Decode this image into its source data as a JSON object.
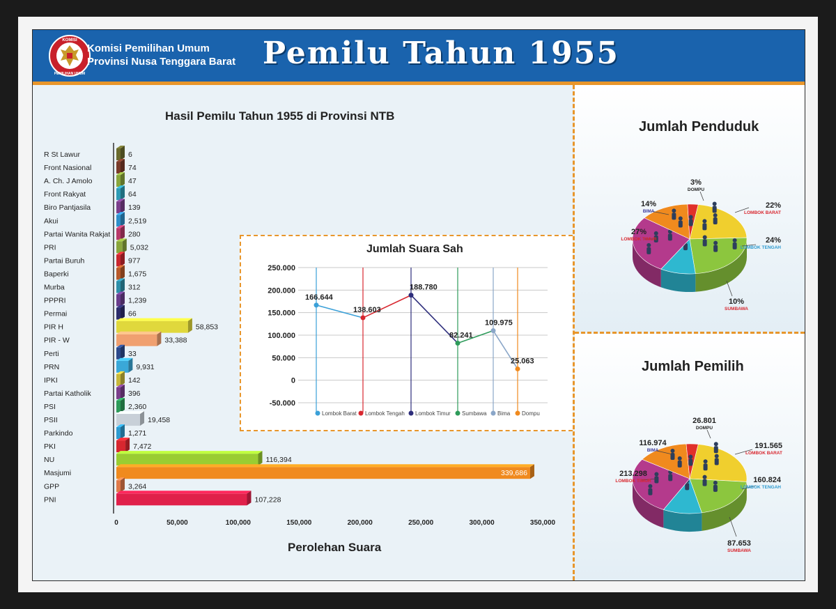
{
  "header": {
    "org_line1": "Komisi Pemilihan Umum",
    "org_line2": "Provinsi Nusa Tenggara Barat",
    "title": "Pemilu Tahun 1955",
    "logo_text_top": "KOMISI",
    "logo_text_bottom": "PEMILIHAN UMUM",
    "colors": {
      "blue": "#1a63ad",
      "orange": "#e8962b"
    }
  },
  "chart_data": [
    {
      "type": "bar",
      "orientation": "horizontal",
      "title": "Hasil Pemilu Tahun 1955 di Provinsi  NTB",
      "xlabel": "Perolehan Suara",
      "xlim": [
        0,
        350000
      ],
      "xticks": [
        "0",
        "50,000",
        "100,000",
        "150,000",
        "200,000",
        "250,000",
        "300,000",
        "350,000"
      ],
      "categories": [
        "R St Lawur",
        "Front Nasional",
        "A. Ch. J Amolo",
        "Front Rakyat",
        "Biro Pantjasila",
        "Akui",
        "Partai Wanita Rakjat",
        "PRI",
        "Partai Buruh",
        "Baperki",
        "Murba",
        "PPPRI",
        "Permai",
        "PIR H",
        "PIR - W",
        "Perti",
        "PRN",
        "IPKI",
        "Partai Katholik",
        "PSI",
        "PSII",
        "Parkindo",
        "PKI",
        "NU",
        "Masjumi",
        "GPP",
        "PNI"
      ],
      "values": [
        6,
        74,
        47,
        64,
        139,
        2519,
        280,
        5032,
        977,
        1675,
        312,
        1239,
        66,
        58853,
        33388,
        33,
        9931,
        142,
        396,
        2360,
        19458,
        1271,
        7472,
        116394,
        339686,
        3264,
        107228
      ],
      "value_labels": [
        "6",
        "74",
        "47",
        "64",
        "139",
        "2,519",
        "280",
        "5,032",
        "977",
        "1,675",
        "312",
        "1,239",
        "66",
        "58,853",
        "33,388",
        "33",
        "9,931",
        "142",
        "396",
        "2,360",
        "19,458",
        "1,271",
        "7,472",
        "116,394",
        "339,686",
        "3,264",
        "107,228"
      ],
      "colors": [
        "#6b6b2e",
        "#7a3b2a",
        "#8aa63c",
        "#2e9bb5",
        "#7b3f8c",
        "#2e8fc9",
        "#b83a6a",
        "#8aa63c",
        "#c9272f",
        "#b85a2a",
        "#2e8fa9",
        "#6a3d8c",
        "#2d2d6b",
        "#e0d83c",
        "#f0a070",
        "#2d4a8c",
        "#3aa8d8",
        "#c8b83a",
        "#7b3f8c",
        "#2e9b5a",
        "#c8d0d8",
        "#2e9bd0",
        "#d8272f",
        "#9acd32",
        "#f08a1e",
        "#e07a4a",
        "#e0204a"
      ]
    },
    {
      "type": "line",
      "title": "Jumlah Suara Sah",
      "ylim": [
        -50000,
        250000
      ],
      "yticks": [
        "250.000",
        "200.000",
        "150.000",
        "100.000",
        "50.000",
        "0",
        "-50.000"
      ],
      "categories": [
        "Lombok Barat",
        "Lombok Tengah",
        "Lombok Timur",
        "Sumbawa",
        "Bima",
        "Dompu"
      ],
      "values": [
        166644,
        138603,
        188780,
        82241,
        109975,
        25063
      ],
      "value_labels": [
        "166.644",
        "138.603",
        "188.780",
        "82.241",
        "109.975",
        "25.063"
      ],
      "colors": [
        "#3aa0d8",
        "#d8272f",
        "#2d2d7b",
        "#2e9b5a",
        "#8aa6c8",
        "#f08a1e"
      ]
    },
    {
      "type": "pie",
      "title": "Jumlah Penduduk",
      "categories": [
        "Lombok Barat",
        "Lombok Tengah",
        "Sumbawa",
        "Lombok Timur",
        "Bima",
        "Dompu"
      ],
      "labels": [
        "LOMBOK BARAT",
        "LOMBOK TENGAH",
        "SUMBAWA",
        "LOMBOK TIMUR",
        "BIMA",
        "DOMPU"
      ],
      "values": [
        22,
        24,
        10,
        27,
        14,
        3
      ],
      "value_labels": [
        "22%",
        "24%",
        "10%",
        "27%",
        "14%",
        "3%"
      ],
      "colors": [
        "#f0cf2e",
        "#8cc63e",
        "#2eb8d0",
        "#b43a8c",
        "#f08a1e",
        "#e0302a"
      ]
    },
    {
      "type": "pie",
      "title": "Jumlah Pemilih",
      "categories": [
        "Lombok Barat",
        "Lombok Tengah",
        "Sumbawa",
        "Lombok Timur",
        "Bima",
        "Dompu"
      ],
      "labels": [
        "LOMBOK BARAT",
        "LOMBOK TENGAH",
        "SUMBAWA",
        "LOMBOK TIMUR",
        "BIMA",
        "DOMPU"
      ],
      "values": [
        191565,
        160824,
        87653,
        213298,
        116974,
        26801
      ],
      "value_labels": [
        "191.565",
        "160.824",
        "87.653",
        "213.298",
        "116.974",
        "26.801"
      ],
      "colors": [
        "#f0cf2e",
        "#8cc63e",
        "#2eb8d0",
        "#b43a8c",
        "#f08a1e",
        "#e0302a"
      ]
    }
  ]
}
